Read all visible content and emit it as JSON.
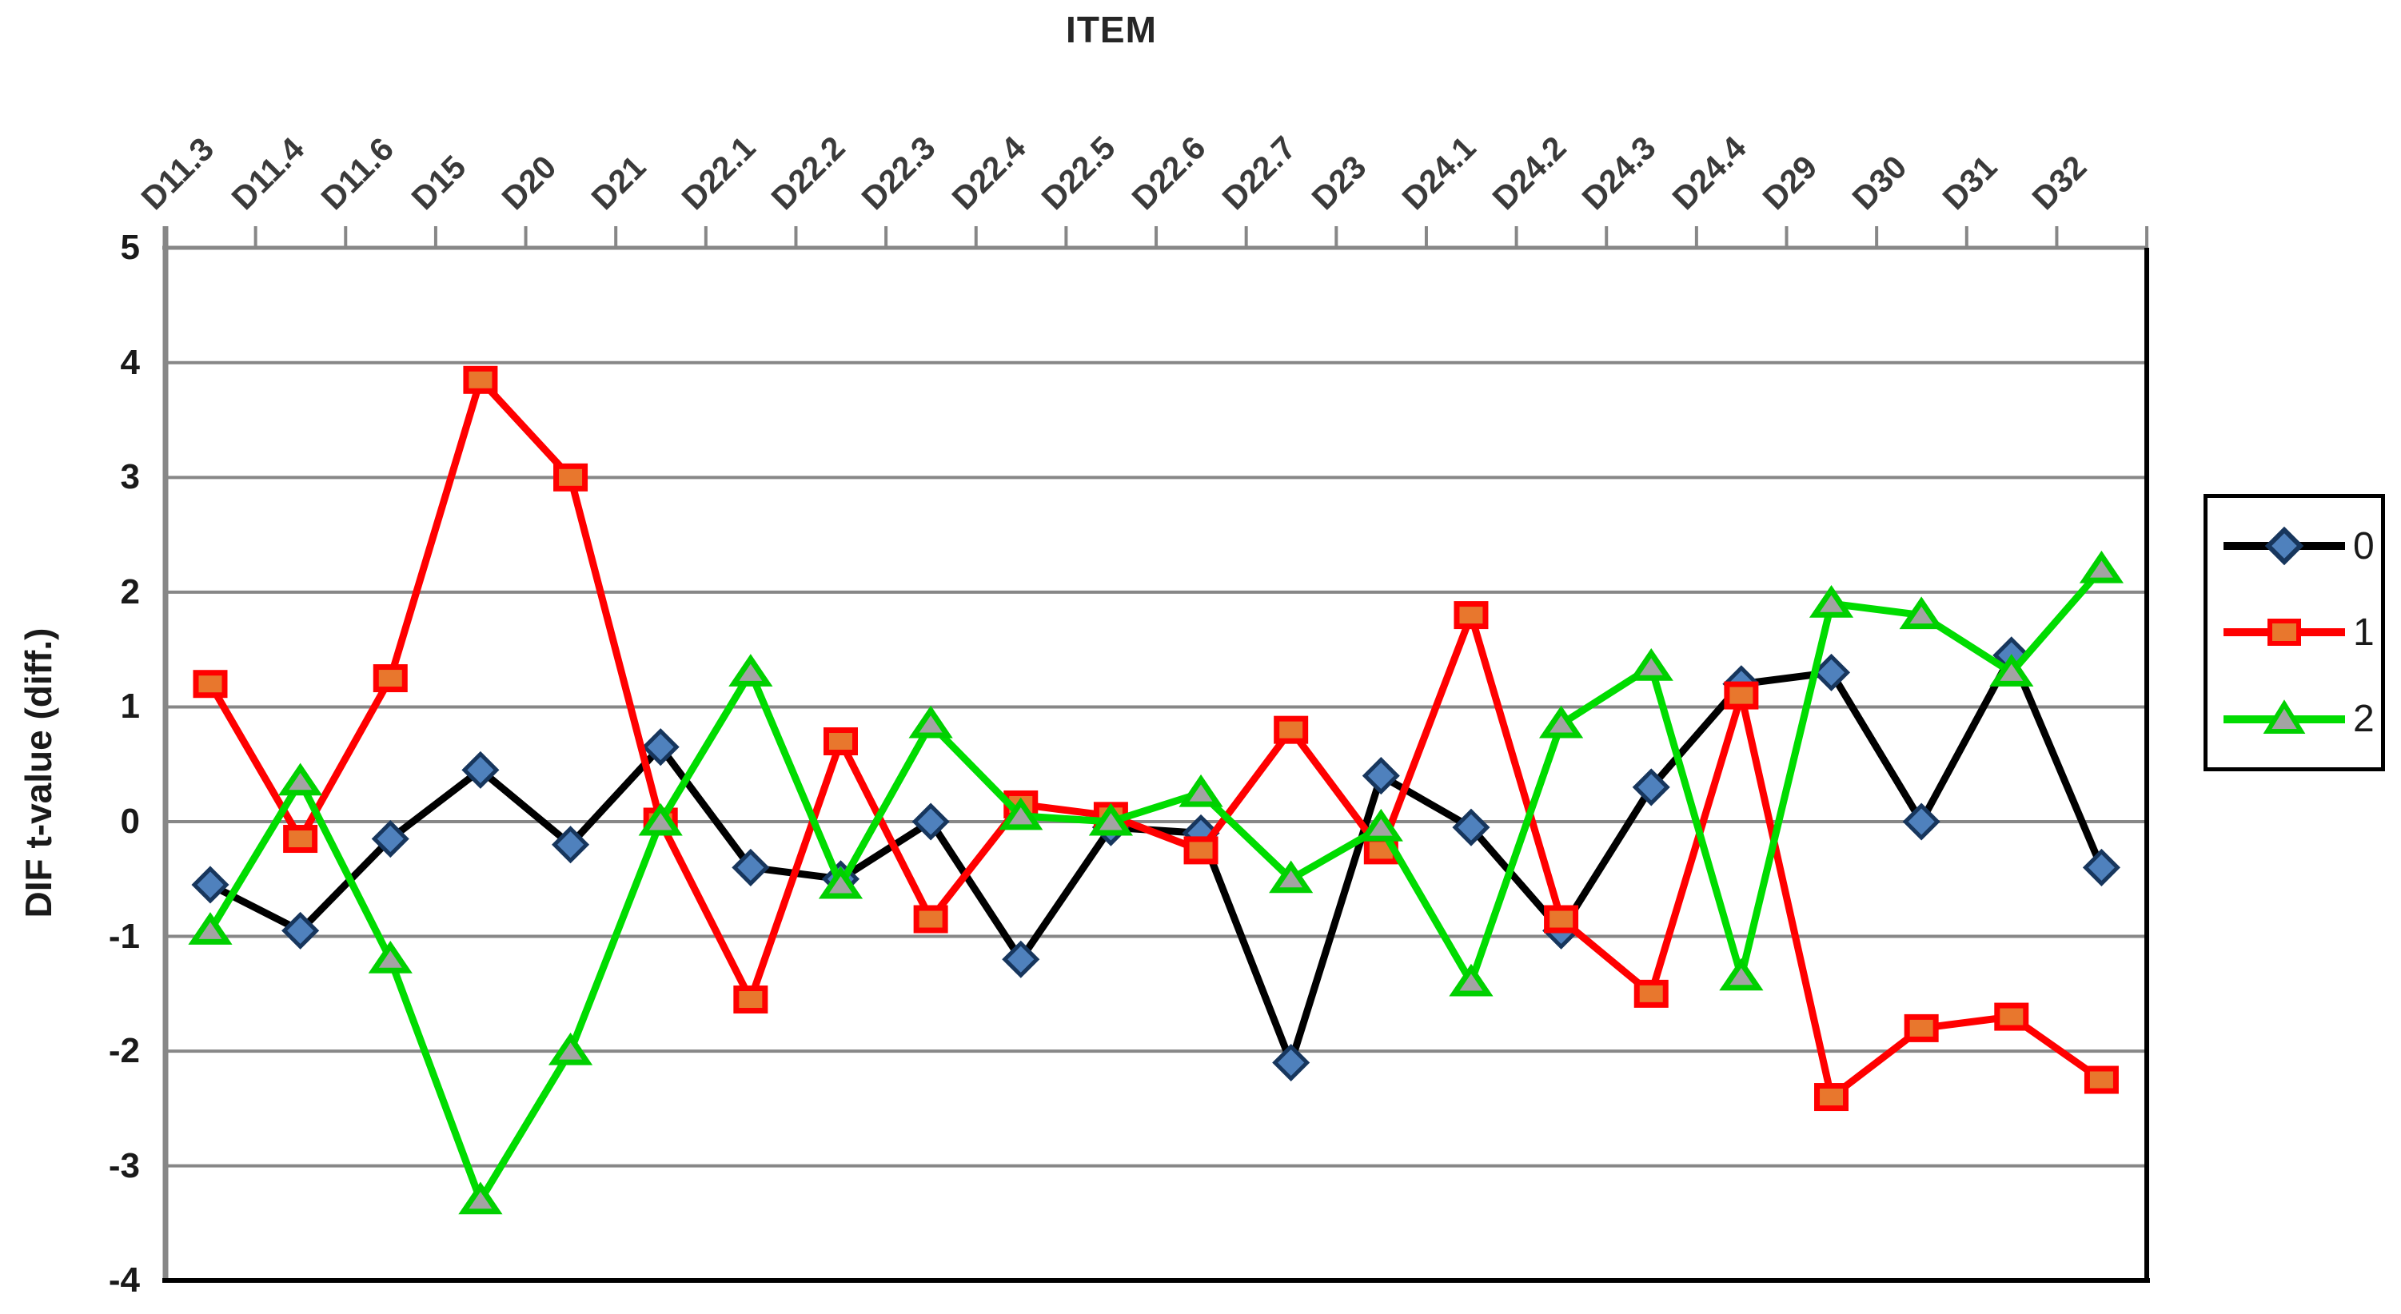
{
  "page": {
    "title": "ITEM"
  },
  "axes": {
    "x_title": "ITEM",
    "y_title": "DIF t-value (diff.)"
  },
  "colors": {
    "background": "#ffffff",
    "gridline": "#878787",
    "axis_gray": "#878787",
    "axis_black": "#000000",
    "text": "#1a1a1a"
  },
  "legend": {
    "position": "right",
    "entries": [
      "0",
      "1",
      "2"
    ]
  },
  "chart_data": {
    "type": "line",
    "title": "ITEM",
    "xlabel": "ITEM",
    "ylabel": "DIF t-value (diff.)",
    "ylim": [
      -4,
      5
    ],
    "yticks": [
      5,
      4,
      3,
      2,
      1,
      0,
      -1,
      -2,
      -3,
      -4
    ],
    "grid": true,
    "legend_position": "right",
    "categories": [
      "D11.3",
      "D11.4",
      "D11.6",
      "D15",
      "D20",
      "D21",
      "D22.1",
      "D22.2",
      "D22.3",
      "D22.4",
      "D22.5",
      "D22.6",
      "D22.7",
      "D23",
      "D24.1",
      "D24.2",
      "D24.3",
      "D24.4",
      "D29",
      "D30",
      "D31",
      "D32"
    ],
    "series": [
      {
        "name": "0",
        "line_color": "#000000",
        "marker": "diamond",
        "marker_fill": "#4f81bd",
        "marker_stroke": "#17365d",
        "values": [
          -0.55,
          -0.95,
          -0.15,
          0.45,
          -0.2,
          0.65,
          -0.4,
          -0.5,
          0.0,
          -1.2,
          -0.05,
          -0.1,
          -2.1,
          0.4,
          -0.05,
          -0.95,
          0.3,
          1.2,
          1.3,
          0.0,
          1.45,
          -0.4
        ]
      },
      {
        "name": "1",
        "line_color": "#ff0000",
        "marker": "square",
        "marker_fill": "#e8772d",
        "marker_stroke": "#ff0000",
        "values": [
          1.2,
          -0.15,
          1.25,
          3.85,
          3.0,
          0.0,
          -1.55,
          0.7,
          -0.85,
          0.15,
          0.05,
          -0.25,
          0.8,
          -0.25,
          1.8,
          -0.85,
          -1.5,
          1.1,
          -2.4,
          -1.8,
          -1.7,
          -2.25
        ]
      },
      {
        "name": "2",
        "line_color": "#00dc00",
        "marker": "triangle",
        "marker_fill": "#a3a3a3",
        "marker_stroke": "#00d000",
        "values": [
          -0.95,
          0.35,
          -1.2,
          -3.3,
          -2.0,
          0.0,
          1.3,
          -0.55,
          0.85,
          0.05,
          0.0,
          0.25,
          -0.5,
          -0.05,
          -1.4,
          0.85,
          1.35,
          -1.35,
          1.9,
          1.8,
          1.3,
          2.2
        ]
      }
    ]
  }
}
